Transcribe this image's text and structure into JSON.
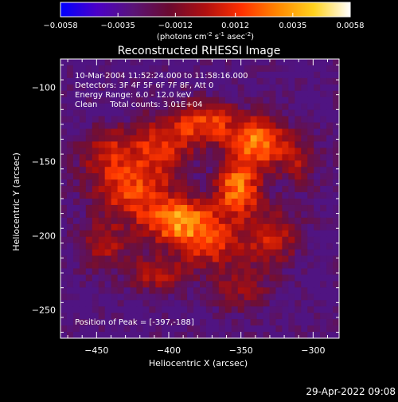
{
  "chart_data": {
    "type": "heatmap",
    "title": "Reconstructed RHESSI Image",
    "xlabel": "Heliocentric X (arcsec)",
    "ylabel": "Heliocentric Y (arcsec)",
    "xlim": [
      -475,
      -282
    ],
    "ylim": [
      -269,
      -81
    ],
    "x_ticks": [
      -450,
      -400,
      -350,
      -300
    ],
    "y_ticks": [
      -100,
      -150,
      -200,
      -250
    ],
    "colorbar": {
      "unit_label": "(photons cm",
      "unit_exp1": "-2",
      "unit_mid": " s",
      "unit_exp2": "-1",
      "unit_mid2": " asec",
      "unit_exp3": "-2",
      "unit_close": ")",
      "tick_labels": [
        "-0.0058",
        "-0.0035",
        "-0.0012",
        "0.0012",
        "0.0035",
        "0.0058"
      ],
      "range": [
        -0.0058,
        0.0058
      ],
      "gradient": [
        "#0000ff",
        "#4b00c8",
        "#5a1478",
        "#6a0a30",
        "#b01010",
        "#ff3000",
        "#ff8800",
        "#ffd21e",
        "#ffffff"
      ]
    },
    "annotations": [
      "10-Mar-2004 11:52:24.000 to 11:58:16.000",
      "Detectors: 3F 4F 5F 6F 7F 8F, Att 0",
      "Energy Range: 6.0 - 12.0 keV",
      "Clean     Total counts: 3.01E+04"
    ],
    "peak_label": "Position of Peak = [-397,-188]",
    "sources": [
      {
        "x": -393,
        "y": -190,
        "amp": 1.0,
        "sx": 17,
        "sy": 10
      },
      {
        "x": -352,
        "y": -168,
        "amp": 0.95,
        "sx": 10,
        "sy": 12
      },
      {
        "x": -338,
        "y": -137,
        "amp": 0.95,
        "sx": 13,
        "sy": 11
      },
      {
        "x": -375,
        "y": -124,
        "amp": 0.7,
        "sx": 15,
        "sy": 10
      },
      {
        "x": -425,
        "y": -170,
        "amp": 0.65,
        "sx": 18,
        "sy": 12
      },
      {
        "x": -440,
        "y": -145,
        "amp": 0.5,
        "sx": 15,
        "sy": 12
      },
      {
        "x": -405,
        "y": -140,
        "amp": 0.55,
        "sx": 14,
        "sy": 14
      },
      {
        "x": -372,
        "y": -205,
        "amp": 0.6,
        "sx": 14,
        "sy": 11
      },
      {
        "x": -330,
        "y": -200,
        "amp": 0.5,
        "sx": 14,
        "sy": 13
      },
      {
        "x": -408,
        "y": -225,
        "amp": 0.45,
        "sx": 14,
        "sy": 9
      },
      {
        "x": -445,
        "y": -205,
        "amp": 0.4,
        "sx": 12,
        "sy": 12
      },
      {
        "x": -350,
        "y": -235,
        "amp": 0.3,
        "sx": 16,
        "sy": 12
      },
      {
        "x": -310,
        "y": -150,
        "amp": 0.35,
        "sx": 10,
        "sy": 12
      }
    ]
  },
  "footer": {
    "timestamp": "29-Apr-2022 09:08"
  }
}
